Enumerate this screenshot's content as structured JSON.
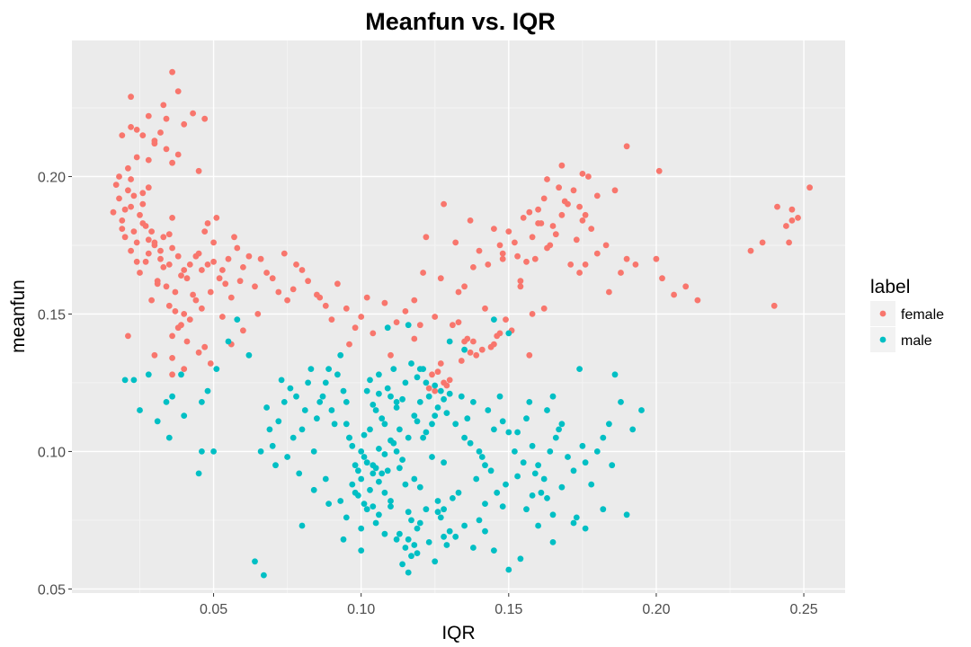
{
  "colors": {
    "female": "#F8766D",
    "male": "#00BFC4",
    "panel": "#EBEBEB",
    "grid_major": "#FFFFFF",
    "grid_minor": "#F4F4F4"
  },
  "chart_data": {
    "type": "scatter",
    "title": "Meanfun vs. IQR",
    "xlabel": "IQR",
    "ylabel": "meanfun",
    "xlim": [
      0.002,
      0.264
    ],
    "ylim": [
      0.0485,
      0.2495
    ],
    "x_ticks": [
      0.05,
      0.1,
      0.15,
      0.2,
      0.25
    ],
    "x_tick_labels": [
      "0.05",
      "0.10",
      "0.15",
      "0.20",
      "0.25"
    ],
    "y_ticks": [
      0.05,
      0.1,
      0.15,
      0.2
    ],
    "y_tick_labels": [
      "0.05",
      "0.10",
      "0.15",
      "0.20"
    ],
    "grid": true,
    "legend": {
      "title": "label",
      "position": "right"
    },
    "series": [
      {
        "name": "female",
        "color": "#F8766D",
        "x": [
          0.032,
          0.028,
          0.035,
          0.03,
          0.025,
          0.038,
          0.033,
          0.04,
          0.027,
          0.031,
          0.036,
          0.029,
          0.034,
          0.042,
          0.022,
          0.037,
          0.03,
          0.026,
          0.039,
          0.044,
          0.033,
          0.028,
          0.031,
          0.035,
          0.024,
          0.041,
          0.036,
          0.029,
          0.032,
          0.046,
          0.02,
          0.018,
          0.023,
          0.021,
          0.019,
          0.026,
          0.024,
          0.022,
          0.017,
          0.025,
          0.027,
          0.021,
          0.023,
          0.016,
          0.028,
          0.02,
          0.024,
          0.019,
          0.022,
          0.026,
          0.045,
          0.048,
          0.05,
          0.052,
          0.047,
          0.055,
          0.049,
          0.053,
          0.051,
          0.058,
          0.046,
          0.054,
          0.057,
          0.05,
          0.06,
          0.056,
          0.048,
          0.062,
          0.053,
          0.059,
          0.04,
          0.038,
          0.044,
          0.036,
          0.042,
          0.035,
          0.041,
          0.039,
          0.043,
          0.037,
          0.064,
          0.068,
          0.072,
          0.066,
          0.07,
          0.075,
          0.078,
          0.065,
          0.082,
          0.085,
          0.088,
          0.08,
          0.09,
          0.077,
          0.092,
          0.095,
          0.098,
          0.074,
          0.086,
          0.1,
          0.104,
          0.108,
          0.112,
          0.096,
          0.115,
          0.12,
          0.118,
          0.102,
          0.11,
          0.125,
          0.026,
          0.034,
          0.022,
          0.03,
          0.038,
          0.028,
          0.036,
          0.04,
          0.032,
          0.045,
          0.036,
          0.038,
          0.033,
          0.022,
          0.024,
          0.034,
          0.047,
          0.043,
          0.03,
          0.028,
          0.019,
          0.018,
          0.03,
          0.036,
          0.047,
          0.049,
          0.06,
          0.056,
          0.04,
          0.036,
          0.021,
          0.045,
          0.15,
          0.155,
          0.16,
          0.165,
          0.17,
          0.158,
          0.162,
          0.168,
          0.175,
          0.172,
          0.178,
          0.152,
          0.163,
          0.157,
          0.166,
          0.174,
          0.18,
          0.148,
          0.161,
          0.169,
          0.164,
          0.171,
          0.176,
          0.159,
          0.167,
          0.173,
          0.156,
          0.177,
          0.153,
          0.16,
          0.168,
          0.19,
          0.163,
          0.175,
          0.132,
          0.137,
          0.145,
          0.128,
          0.14,
          0.122,
          0.135,
          0.143,
          0.127,
          0.118,
          0.148,
          0.142,
          0.133,
          0.121,
          0.147,
          0.138,
          0.188,
          0.193,
          0.2,
          0.202,
          0.206,
          0.21,
          0.214,
          0.232,
          0.236,
          0.24,
          0.244,
          0.246,
          0.248,
          0.252,
          0.241,
          0.246,
          0.245,
          0.201,
          0.186,
          0.19,
          0.138,
          0.146,
          0.127,
          0.124,
          0.141,
          0.151,
          0.131,
          0.144,
          0.135,
          0.123,
          0.13,
          0.134,
          0.139,
          0.128,
          0.149,
          0.158,
          0.154,
          0.174,
          0.18,
          0.183,
          0.176,
          0.184,
          0.162,
          0.147,
          0.157,
          0.133,
          0.126,
          0.145,
          0.129,
          0.136,
          0.125,
          0.137,
          0.154
        ],
        "y": [
          0.17,
          0.172,
          0.168,
          0.175,
          0.165,
          0.171,
          0.178,
          0.166,
          0.169,
          0.162,
          0.174,
          0.18,
          0.16,
          0.168,
          0.173,
          0.158,
          0.176,
          0.183,
          0.164,
          0.171,
          0.167,
          0.177,
          0.161,
          0.179,
          0.169,
          0.163,
          0.185,
          0.155,
          0.173,
          0.166,
          0.188,
          0.192,
          0.18,
          0.195,
          0.184,
          0.19,
          0.176,
          0.199,
          0.197,
          0.186,
          0.182,
          0.203,
          0.193,
          0.187,
          0.196,
          0.178,
          0.207,
          0.181,
          0.189,
          0.194,
          0.172,
          0.168,
          0.176,
          0.163,
          0.18,
          0.17,
          0.158,
          0.166,
          0.185,
          0.174,
          0.152,
          0.161,
          0.178,
          0.169,
          0.167,
          0.156,
          0.183,
          0.171,
          0.149,
          0.162,
          0.15,
          0.145,
          0.155,
          0.142,
          0.148,
          0.153,
          0.14,
          0.146,
          0.157,
          0.151,
          0.16,
          0.165,
          0.158,
          0.17,
          0.163,
          0.155,
          0.168,
          0.15,
          0.162,
          0.157,
          0.153,
          0.166,
          0.148,
          0.159,
          0.161,
          0.152,
          0.145,
          0.172,
          0.156,
          0.149,
          0.143,
          0.154,
          0.147,
          0.139,
          0.151,
          0.146,
          0.141,
          0.156,
          0.135,
          0.149,
          0.215,
          0.21,
          0.218,
          0.212,
          0.208,
          0.222,
          0.205,
          0.219,
          0.216,
          0.202,
          0.238,
          0.231,
          0.226,
          0.229,
          0.217,
          0.221,
          0.221,
          0.223,
          0.213,
          0.206,
          0.215,
          0.2,
          0.135,
          0.134,
          0.138,
          0.132,
          0.144,
          0.139,
          0.13,
          0.128,
          0.142,
          0.136,
          0.18,
          0.185,
          0.188,
          0.182,
          0.19,
          0.178,
          0.192,
          0.186,
          0.184,
          0.195,
          0.181,
          0.176,
          0.174,
          0.187,
          0.179,
          0.189,
          0.193,
          0.172,
          0.183,
          0.191,
          0.175,
          0.168,
          0.186,
          0.17,
          0.196,
          0.177,
          0.169,
          0.2,
          0.171,
          0.183,
          0.204,
          0.211,
          0.199,
          0.201,
          0.176,
          0.184,
          0.181,
          0.19,
          0.173,
          0.178,
          0.16,
          0.168,
          0.163,
          0.155,
          0.17,
          0.152,
          0.158,
          0.165,
          0.175,
          0.167,
          0.165,
          0.168,
          0.17,
          0.163,
          0.157,
          0.16,
          0.155,
          0.173,
          0.176,
          0.153,
          0.182,
          0.188,
          0.185,
          0.196,
          0.189,
          0.184,
          0.176,
          0.202,
          0.195,
          0.17,
          0.14,
          0.142,
          0.132,
          0.128,
          0.137,
          0.144,
          0.146,
          0.138,
          0.14,
          0.123,
          0.126,
          0.133,
          0.135,
          0.125,
          0.148,
          0.15,
          0.16,
          0.165,
          0.172,
          0.175,
          0.168,
          0.158,
          0.152,
          0.143,
          0.135,
          0.147,
          0.129,
          0.139,
          0.124,
          0.141,
          0.122,
          0.136,
          0.162
        ]
      },
      {
        "name": "male",
        "color": "#00BFC4",
        "x": [
          0.11,
          0.105,
          0.115,
          0.108,
          0.112,
          0.102,
          0.118,
          0.106,
          0.113,
          0.109,
          0.104,
          0.116,
          0.111,
          0.107,
          0.114,
          0.103,
          0.119,
          0.11,
          0.106,
          0.112,
          0.1,
          0.098,
          0.096,
          0.101,
          0.099,
          0.103,
          0.097,
          0.102,
          0.095,
          0.104,
          0.108,
          0.1,
          0.106,
          0.101,
          0.105,
          0.12,
          0.122,
          0.125,
          0.121,
          0.123,
          0.126,
          0.119,
          0.124,
          0.127,
          0.128,
          0.117,
          0.122,
          0.125,
          0.129,
          0.13,
          0.092,
          0.094,
          0.09,
          0.093,
          0.088,
          0.091,
          0.095,
          0.089,
          0.087,
          0.096,
          0.085,
          0.082,
          0.086,
          0.08,
          0.083,
          0.078,
          0.084,
          0.081,
          0.079,
          0.076,
          0.077,
          0.074,
          0.075,
          0.072,
          0.07,
          0.073,
          0.071,
          0.068,
          0.069,
          0.066,
          0.132,
          0.135,
          0.138,
          0.14,
          0.136,
          0.142,
          0.134,
          0.145,
          0.139,
          0.143,
          0.137,
          0.141,
          0.148,
          0.144,
          0.15,
          0.146,
          0.152,
          0.147,
          0.155,
          0.149,
          0.158,
          0.156,
          0.16,
          0.153,
          0.162,
          0.164,
          0.157,
          0.166,
          0.161,
          0.17,
          0.168,
          0.172,
          0.165,
          0.175,
          0.174,
          0.176,
          0.178,
          0.163,
          0.167,
          0.159,
          0.182,
          0.185,
          0.184,
          0.18,
          0.186,
          0.188,
          0.192,
          0.195,
          0.112,
          0.118,
          0.108,
          0.104,
          0.121,
          0.115,
          0.11,
          0.124,
          0.116,
          0.107,
          0.12,
          0.113,
          0.126,
          0.103,
          0.117,
          0.111,
          0.099,
          0.114,
          0.119,
          0.106,
          0.122,
          0.128,
          0.109,
          0.131,
          0.101,
          0.127,
          0.113,
          0.105,
          0.133,
          0.116,
          0.095,
          0.1,
          0.108,
          0.112,
          0.118,
          0.104,
          0.12,
          0.126,
          0.098,
          0.115,
          0.11,
          0.13,
          0.123,
          0.102,
          0.135,
          0.14,
          0.117,
          0.128,
          0.145,
          0.106,
          0.15,
          0.154,
          0.142,
          0.138,
          0.16,
          0.148,
          0.132,
          0.165,
          0.129,
          0.119,
          0.125,
          0.114,
          0.093,
          0.097,
          0.088,
          0.084,
          0.142,
          0.156,
          0.165,
          0.172,
          0.182,
          0.176,
          0.19,
          0.163,
          0.173,
          0.153,
          0.158,
          0.168,
          0.062,
          0.058,
          0.055,
          0.051,
          0.048,
          0.046,
          0.04,
          0.036,
          0.034,
          0.025,
          0.023,
          0.02,
          0.031,
          0.028,
          0.035,
          0.046,
          0.039,
          0.045,
          0.05,
          0.067,
          0.064,
          0.089,
          0.094,
          0.08,
          0.1,
          0.116,
          0.128,
          0.15,
          0.12,
          0.13,
          0.109,
          0.116,
          0.135,
          0.145
        ],
        "y": [
          0.12,
          0.115,
          0.125,
          0.11,
          0.118,
          0.122,
          0.113,
          0.128,
          0.108,
          0.123,
          0.117,
          0.105,
          0.13,
          0.112,
          0.119,
          0.126,
          0.111,
          0.104,
          0.121,
          0.116,
          0.1,
          0.095,
          0.105,
          0.098,
          0.093,
          0.108,
          0.102,
          0.096,
          0.11,
          0.092,
          0.099,
          0.09,
          0.101,
          0.106,
          0.094,
          0.118,
          0.125,
          0.113,
          0.13,
          0.12,
          0.116,
          0.127,
          0.11,
          0.122,
          0.119,
          0.132,
          0.107,
          0.124,
          0.114,
          0.121,
          0.128,
          0.122,
          0.115,
          0.135,
          0.125,
          0.11,
          0.118,
          0.13,
          0.12,
          0.105,
          0.112,
          0.125,
          0.118,
          0.108,
          0.13,
          0.12,
          0.1,
          0.115,
          0.092,
          0.123,
          0.105,
          0.118,
          0.098,
          0.111,
          0.102,
          0.126,
          0.095,
          0.116,
          0.108,
          0.1,
          0.11,
          0.105,
          0.118,
          0.1,
          0.112,
          0.095,
          0.12,
          0.108,
          0.09,
          0.115,
          0.103,
          0.098,
          0.111,
          0.093,
          0.107,
          0.085,
          0.1,
          0.12,
          0.096,
          0.088,
          0.102,
          0.112,
          0.095,
          0.107,
          0.09,
          0.1,
          0.118,
          0.105,
          0.085,
          0.098,
          0.11,
          0.093,
          0.12,
          0.102,
          0.13,
          0.096,
          0.088,
          0.115,
          0.108,
          0.092,
          0.105,
          0.095,
          0.11,
          0.1,
          0.128,
          0.118,
          0.108,
          0.115,
          0.1,
          0.09,
          0.085,
          0.095,
          0.105,
          0.088,
          0.08,
          0.098,
          0.078,
          0.092,
          0.087,
          0.094,
          0.082,
          0.086,
          0.075,
          0.103,
          0.084,
          0.097,
          0.072,
          0.089,
          0.079,
          0.096,
          0.093,
          0.083,
          0.081,
          0.076,
          0.07,
          0.074,
          0.085,
          0.068,
          0.076,
          0.072,
          0.07,
          0.068,
          0.066,
          0.08,
          0.074,
          0.078,
          0.085,
          0.065,
          0.082,
          0.071,
          0.067,
          0.079,
          0.073,
          0.075,
          0.062,
          0.069,
          0.064,
          0.077,
          0.057,
          0.061,
          0.071,
          0.065,
          0.073,
          0.08,
          0.069,
          0.077,
          0.066,
          0.063,
          0.06,
          0.059,
          0.082,
          0.088,
          0.09,
          0.086,
          0.081,
          0.079,
          0.067,
          0.074,
          0.079,
          0.072,
          0.077,
          0.083,
          0.076,
          0.091,
          0.084,
          0.087,
          0.135,
          0.148,
          0.14,
          0.13,
          0.122,
          0.118,
          0.113,
          0.12,
          0.118,
          0.115,
          0.126,
          0.126,
          0.111,
          0.128,
          0.105,
          0.1,
          0.128,
          0.092,
          0.1,
          0.055,
          0.06,
          0.081,
          0.068,
          0.073,
          0.064,
          0.056,
          0.079,
          0.143,
          0.13,
          0.14,
          0.145,
          0.146,
          0.137,
          0.148
        ]
      }
    ]
  }
}
